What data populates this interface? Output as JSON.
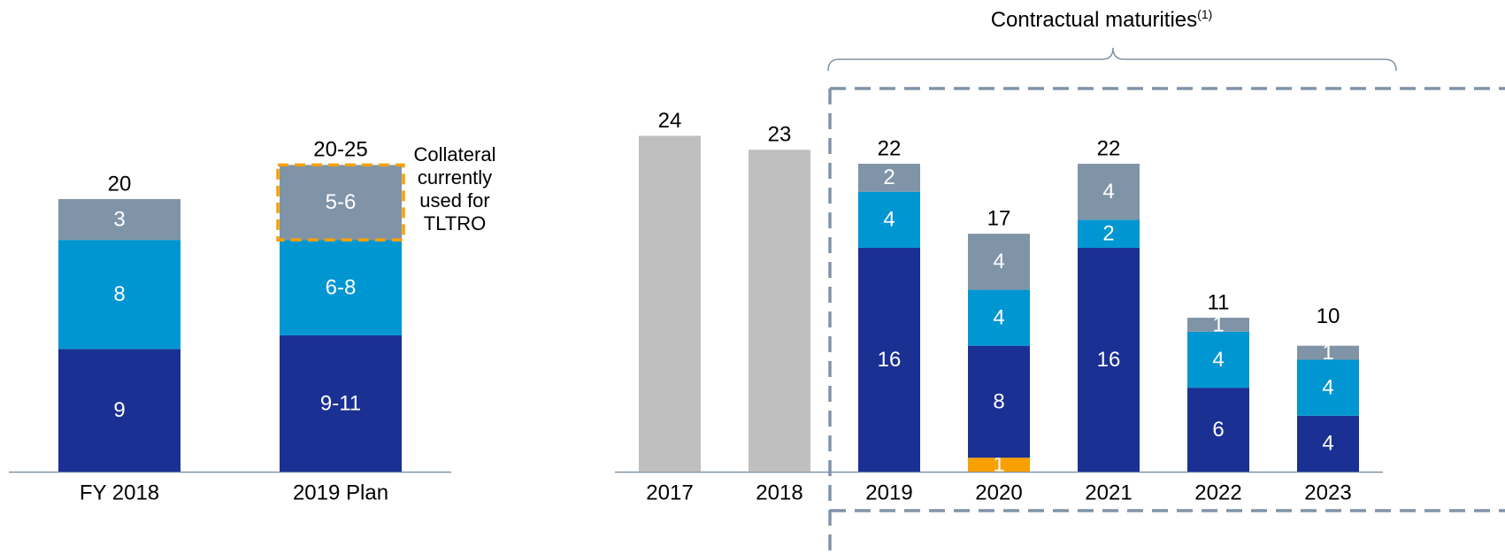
{
  "chart_data": [
    {
      "type": "stacked_bar",
      "categories": [
        "FY 2018",
        "2019 Plan"
      ],
      "series": [
        {
          "color": "#1a3093",
          "values": [
            9,
            10
          ],
          "value_labels": [
            "9",
            "9-11"
          ]
        },
        {
          "color": "#0096d2",
          "values": [
            8,
            7
          ],
          "value_labels": [
            "8",
            "6-8"
          ]
        },
        {
          "color": "#8094a8",
          "values": [
            3,
            5.5
          ],
          "value_labels": [
            "3",
            "5-6"
          ]
        }
      ],
      "totals": [
        20,
        22.5
      ],
      "total_labels": [
        "20",
        "20-25"
      ],
      "annotation": "Collateral currently used for TLTRO",
      "ylim": [
        0,
        34.6
      ]
    },
    {
      "type": "stacked_bar",
      "categories": [
        "2017",
        "2018",
        "2019",
        "2020",
        "2021",
        "2022",
        "2023"
      ],
      "series": [
        {
          "color": "#bfbfbf",
          "values": [
            24,
            23,
            null,
            null,
            null,
            null,
            null
          ]
        },
        {
          "color": "#f7a000",
          "values": [
            null,
            null,
            null,
            1,
            null,
            null,
            null
          ]
        },
        {
          "color": "#1a3093",
          "values": [
            null,
            null,
            16,
            8,
            16,
            6,
            4
          ]
        },
        {
          "color": "#0096d2",
          "values": [
            null,
            null,
            4,
            4,
            2,
            4,
            4
          ]
        },
        {
          "color": "#8094a8",
          "values": [
            null,
            null,
            2,
            4,
            4,
            1,
            1
          ]
        }
      ],
      "totals": [
        24,
        23,
        22,
        17,
        22,
        11,
        10
      ],
      "annotation": "Contractual maturities",
      "annotation_note": "(1)",
      "ylim": [
        0,
        33.7
      ]
    }
  ]
}
